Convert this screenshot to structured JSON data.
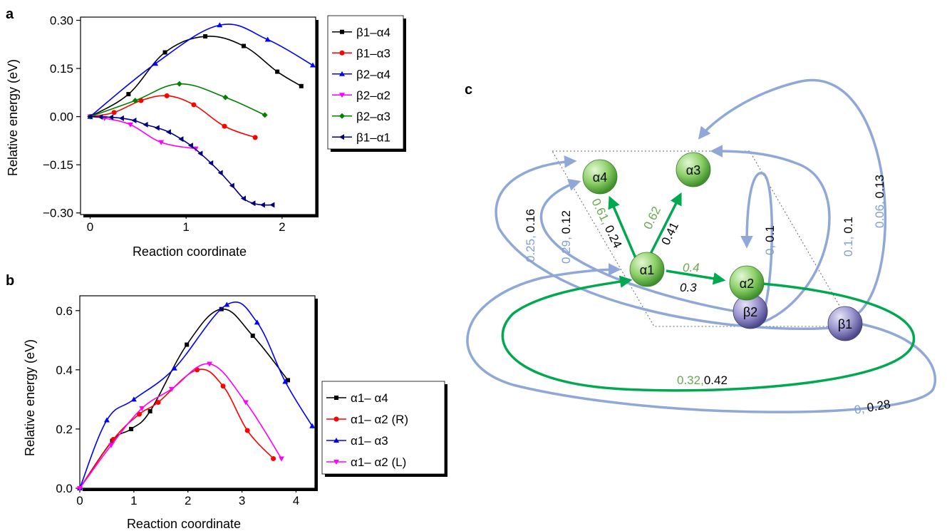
{
  "panels": {
    "a": {
      "letter": "a",
      "chart_data": {
        "type": "line",
        "xlabel": "Reaction coordinate",
        "ylabel": "Relative energy (eV)",
        "xlim": [
          -0.1,
          2.35
        ],
        "ylim": [
          -0.305,
          0.31
        ],
        "xticks": [
          0,
          1,
          2
        ],
        "yticks": [
          -0.3,
          -0.15,
          0.0,
          0.15,
          0.3
        ],
        "ytick_labels": [
          "−0.30",
          "−0.15",
          "0.00",
          "0.15",
          "0.30"
        ],
        "grid": false,
        "legend_position": "outside-right",
        "series": [
          {
            "name": "β1–α4",
            "color": "#000000",
            "marker": "square",
            "x": [
              0,
              0.4,
              0.78,
              1.2,
              1.6,
              1.95,
              2.2
            ],
            "y": [
              0,
              0.07,
              0.2,
              0.25,
              0.22,
              0.14,
              0.095
            ]
          },
          {
            "name": "β1–α3",
            "color": "#ff0000",
            "marker": "circle",
            "x": [
              0,
              0.25,
              0.53,
              0.8,
              1.08,
              1.4,
              1.72
            ],
            "y": [
              0,
              0.013,
              0.05,
              0.065,
              0.037,
              -0.03,
              -0.065
            ]
          },
          {
            "name": "β2–α4",
            "color": "#0000ff",
            "marker": "triangle-up",
            "x": [
              0,
              0.68,
              1.35,
              1.85,
              2.32
            ],
            "y": [
              0,
              0.165,
              0.285,
              0.24,
              0.16
            ]
          },
          {
            "name": "β2–α2",
            "color": "#ff00ff",
            "marker": "triangle-down",
            "x": [
              0,
              0.15,
              0.42,
              0.74,
              1.1
            ],
            "y": [
              0,
              -0.005,
              -0.025,
              -0.08,
              -0.1
            ]
          },
          {
            "name": "β2–α3",
            "color": "#008000",
            "marker": "diamond",
            "x": [
              0,
              0.47,
              0.93,
              1.41,
              1.82
            ],
            "y": [
              0,
              0.05,
              0.102,
              0.06,
              0.005
            ]
          },
          {
            "name": "β1–α1",
            "color": "#000080",
            "marker": "triangle-left",
            "x": [
              0,
              0.11,
              0.22,
              0.33,
              0.46,
              0.58,
              0.7,
              0.82,
              0.95,
              1.05,
              1.15,
              1.26,
              1.36,
              1.48,
              1.6,
              1.7,
              1.8,
              1.9
            ],
            "y": [
              0,
              -0.001,
              -0.002,
              -0.005,
              -0.012,
              -0.025,
              -0.035,
              -0.048,
              -0.07,
              -0.09,
              -0.115,
              -0.145,
              -0.175,
              -0.215,
              -0.255,
              -0.27,
              -0.275,
              -0.275
            ]
          }
        ]
      }
    },
    "b": {
      "letter": "b",
      "chart_data": {
        "type": "line",
        "xlabel": "Reaction coordinate",
        "ylabel": "Relative energy (eV)",
        "xlim": [
          0,
          4.35
        ],
        "ylim": [
          0,
          0.65
        ],
        "xticks": [
          0,
          1,
          2,
          3,
          4
        ],
        "yticks": [
          0.0,
          0.2,
          0.4,
          0.6
        ],
        "ytick_labels": [
          "0.0",
          "0.2",
          "0.4",
          "0.6"
        ],
        "grid": false,
        "legend_position": "outside-right-bottom",
        "series": [
          {
            "name": "α1– α4",
            "color": "#000000",
            "marker": "square",
            "x": [
              0,
              0.6,
              0.95,
              1.3,
              1.98,
              2.62,
              3.2,
              3.85
            ],
            "y": [
              0,
              0.16,
              0.2,
              0.26,
              0.485,
              0.605,
              0.515,
              0.365
            ]
          },
          {
            "name": "α1– α2 (R)",
            "color": "#ff0000",
            "marker": "circle",
            "x": [
              0,
              0.62,
              1.1,
              1.45,
              2.17,
              2.65,
              3.1,
              3.58
            ],
            "y": [
              0,
              0.165,
              0.25,
              0.29,
              0.4,
              0.345,
              0.195,
              0.1
            ]
          },
          {
            "name": "α1– α3",
            "color": "#0000ff",
            "marker": "triangle-up",
            "x": [
              0,
              0.5,
              1.0,
              1.75,
              2.72,
              3.28,
              3.8,
              4.3
            ],
            "y": [
              0,
              0.23,
              0.3,
              0.405,
              0.62,
              0.56,
              0.36,
              0.21
            ]
          },
          {
            "name": "α1– α2 (L)",
            "color": "#ff00ff",
            "marker": "triangle-down",
            "x": [
              0,
              0.58,
              1.15,
              1.7,
              2.4,
              3.07,
              3.73
            ],
            "y": [
              0,
              0.145,
              0.27,
              0.335,
              0.42,
              0.29,
              0.1
            ]
          }
        ]
      }
    },
    "c": {
      "letter": "c",
      "colors": {
        "green": "#00a84f",
        "blue_edge": "#8fa8d8",
        "green_label": "#6aa84f",
        "blue_label": "#7fa0d0"
      },
      "nodes": [
        {
          "id": "a4",
          "label": "α4",
          "kind": "alpha"
        },
        {
          "id": "a3",
          "label": "α3",
          "kind": "alpha"
        },
        {
          "id": "a1",
          "label": "α1",
          "kind": "alpha"
        },
        {
          "id": "a2",
          "label": "α2",
          "kind": "alpha"
        },
        {
          "id": "b2",
          "label": "β2",
          "kind": "beta"
        },
        {
          "id": "b1",
          "label": "β1",
          "kind": "beta"
        }
      ],
      "edge_labels": {
        "a1_a4": {
          "first": "0.61,",
          "second": "0.24"
        },
        "a1_a3": {
          "first": "0.62",
          "second": "0.41"
        },
        "a1_a2": {
          "first": "0.4",
          "second": "0.3"
        },
        "b1_a1_loop": {
          "first": "0.32,",
          "second": "0.42"
        },
        "b1_outer": {
          "first": "0,",
          "second": "0.28"
        },
        "to_a4_outer": {
          "first": "0.25,",
          "second": "0.16"
        },
        "to_a4_inner": {
          "first": "0.29,",
          "second": "0.12"
        },
        "b2_a2": {
          "first": "0,",
          "second": "0.1"
        },
        "b1_a3_inner": {
          "first": "0.1,",
          "second": "0.1"
        },
        "b1_a3_outer": {
          "first": "0.06,",
          "second": "0.13"
        }
      }
    }
  }
}
